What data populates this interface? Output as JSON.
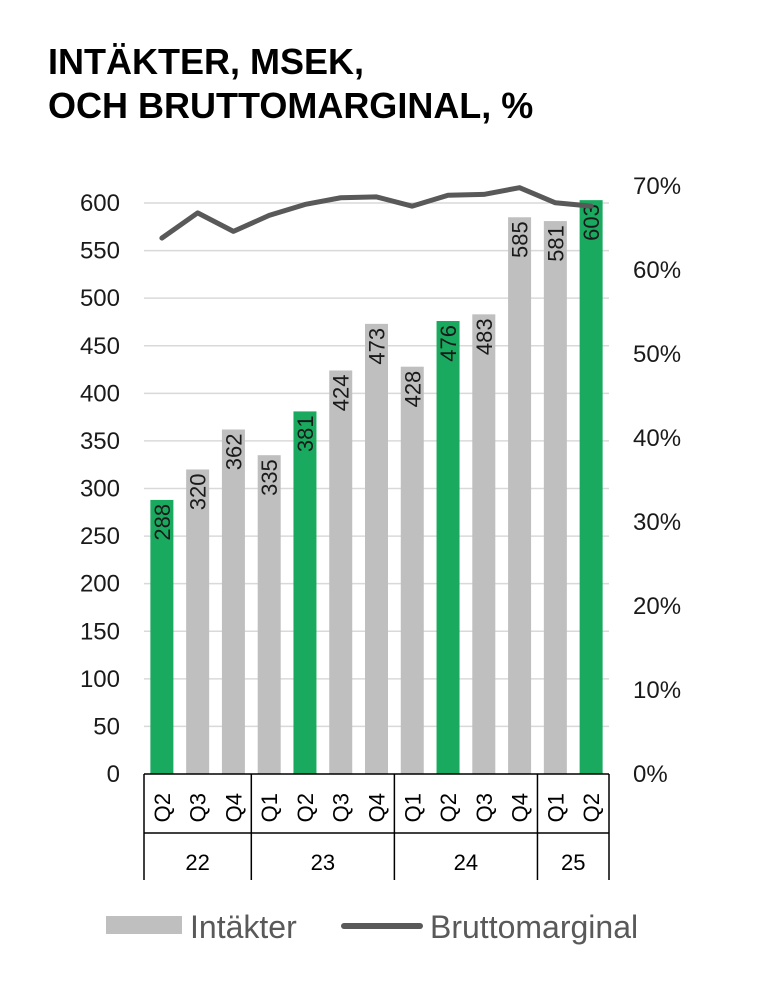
{
  "chart_data": {
    "type": "bar",
    "title": [
      "INTÄKTER, MSEK,",
      "OCH BRUTTOMARGINAL, %"
    ],
    "categories": [
      "Q2",
      "Q3",
      "Q4",
      "Q1",
      "Q2",
      "Q3",
      "Q4",
      "Q1",
      "Q2",
      "Q3",
      "Q4",
      "Q1",
      "Q2"
    ],
    "year_groups": [
      {
        "label": "22",
        "count": 3
      },
      {
        "label": "23",
        "count": 4
      },
      {
        "label": "24",
        "count": 4
      },
      {
        "label": "25",
        "count": 2
      }
    ],
    "series": [
      {
        "name": "Intäkter",
        "type": "bar",
        "axis": "left",
        "values": [
          288,
          320,
          362,
          335,
          381,
          424,
          473,
          428,
          476,
          483,
          585,
          581,
          603
        ],
        "highlight": [
          true,
          false,
          false,
          false,
          true,
          false,
          false,
          false,
          true,
          false,
          false,
          false,
          true
        ]
      },
      {
        "name": "Bruttomarginal",
        "type": "line",
        "axis": "right",
        "values": [
          63.8,
          66.8,
          64.6,
          66.5,
          67.8,
          68.6,
          68.7,
          67.6,
          68.9,
          69.0,
          69.8,
          68.0,
          67.6
        ]
      }
    ],
    "y_left": {
      "min": 0,
      "max": 600,
      "ticks": [
        0,
        50,
        100,
        150,
        200,
        250,
        300,
        350,
        400,
        450,
        500,
        550,
        600
      ]
    },
    "y_right": {
      "min": 0,
      "max": 70,
      "ticks": [
        "0%",
        "10%",
        "20%",
        "30%",
        "40%",
        "50%",
        "60%",
        "70%"
      ]
    },
    "grid": true,
    "legend": {
      "position": "bottom"
    },
    "colors": {
      "bar": "#bfbfbf",
      "bar_highlight": "#1aaa5f",
      "line": "#595959",
      "grid": "#d9d9d9"
    }
  }
}
